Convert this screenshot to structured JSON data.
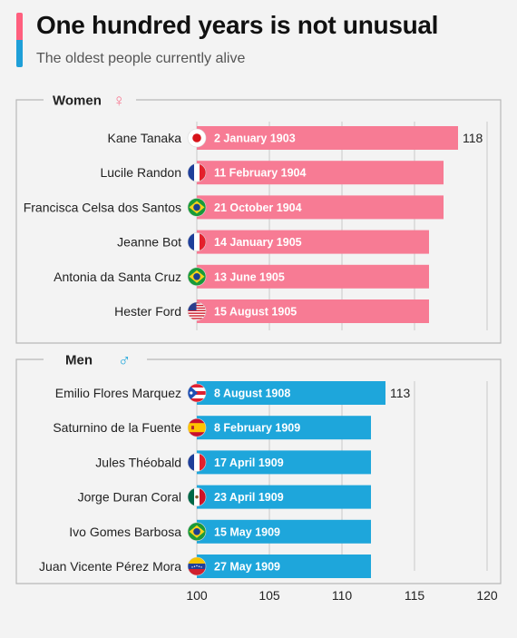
{
  "header": {
    "title": "One hundred years is not unusual",
    "subtitle": "The oldest people currently alive"
  },
  "colors": {
    "women": "#f77b94",
    "men": "#1ea6db",
    "frame": "#b8b8b8",
    "grid": "#c8c8c8"
  },
  "chart_data": {
    "type": "bar",
    "orientation": "horizontal",
    "xlim": [
      100,
      120
    ],
    "xticks": [
      100,
      105,
      110,
      115,
      120
    ],
    "grid": true,
    "groups": [
      {
        "name": "Women",
        "symbol": "♀",
        "color": "#f77b94",
        "items": [
          {
            "name": "Kane Tanaka",
            "birth": "2 January 1903",
            "value": 118,
            "value_label": "118",
            "flag": "japan-flag"
          },
          {
            "name": "Lucile Randon",
            "birth": "11 February 1904",
            "value": 117,
            "value_label": "",
            "flag": "france-flag"
          },
          {
            "name": "Francisca Celsa dos Santos",
            "birth": "21 October 1904",
            "value": 117,
            "value_label": "",
            "flag": "brazil-flag"
          },
          {
            "name": "Jeanne Bot",
            "birth": "14 January 1905",
            "value": 116,
            "value_label": "",
            "flag": "france-flag"
          },
          {
            "name": "Antonia da Santa Cruz",
            "birth": "13 June 1905",
            "value": 116,
            "value_label": "",
            "flag": "brazil-flag"
          },
          {
            "name": "Hester Ford",
            "birth": "15 August 1905",
            "value": 116,
            "value_label": "",
            "flag": "usa-flag"
          }
        ]
      },
      {
        "name": "Men",
        "symbol": "♂",
        "color": "#1ea6db",
        "items": [
          {
            "name": "Emilio Flores Marquez",
            "birth": "8 August 1908",
            "value": 113,
            "value_label": "113",
            "flag": "puerto-rico-flag"
          },
          {
            "name": "Saturnino de la Fuente",
            "birth": "8 February 1909",
            "value": 112,
            "value_label": "",
            "flag": "spain-flag"
          },
          {
            "name": "Jules Théobald",
            "birth": "17 April 1909",
            "value": 112,
            "value_label": "",
            "flag": "france-flag"
          },
          {
            "name": "Jorge Duran Coral",
            "birth": "23 April 1909",
            "value": 112,
            "value_label": "",
            "flag": "mexico-flag"
          },
          {
            "name": "Ivo Gomes Barbosa",
            "birth": "15 May 1909",
            "value": 112,
            "value_label": "",
            "flag": "brazil-flag"
          },
          {
            "name": "Juan Vicente Pérez Mora",
            "birth": "27 May 1909",
            "value": 112,
            "value_label": "",
            "flag": "venezuela-flag"
          }
        ]
      }
    ]
  }
}
